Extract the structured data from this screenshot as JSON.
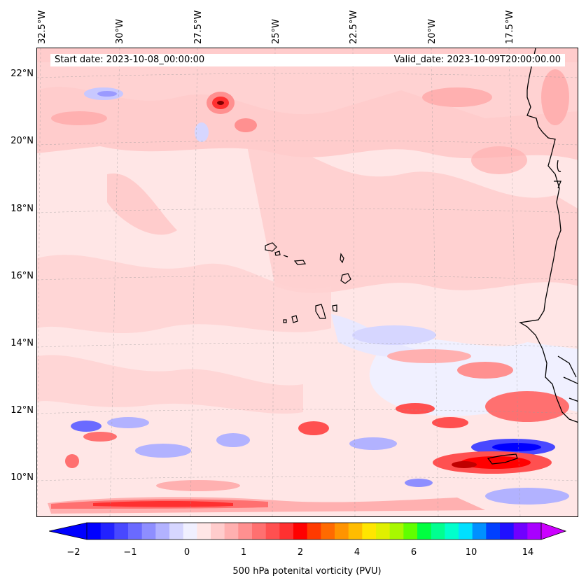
{
  "header": {
    "start_date": "Start date: 2023-10-08_00:00:00",
    "valid_date": "Valid_date: 2023-10-09T20:00:00.00"
  },
  "map": {
    "lon_labels": [
      "32.5°W",
      "30°W",
      "27.5°W",
      "25°W",
      "22.5°W",
      "20°W",
      "17.5°W"
    ],
    "lat_labels": [
      "22°N",
      "20°N",
      "18°N",
      "16°N",
      "14°N",
      "12°N",
      "10°N"
    ],
    "background_color": "#ffe6e6"
  },
  "colorbar": {
    "label": "500 hPa potenital vorticity (PVU)",
    "ticks": [
      "−2",
      "−1",
      "0",
      "1",
      "2",
      "4",
      "6",
      "10",
      "14"
    ],
    "colors": [
      "#0000ff",
      "#2222ff",
      "#4848ff",
      "#6a6aff",
      "#8e8eff",
      "#b2b2ff",
      "#d6d6ff",
      "#f0f0ff",
      "#ffe6e6",
      "#ffcccc",
      "#ffb0b0",
      "#ff9090",
      "#ff7070",
      "#ff5050",
      "#ff3030",
      "#ff0000",
      "#ff3a00",
      "#ff6a00",
      "#ff9400",
      "#ffbc00",
      "#ffe600",
      "#e0f000",
      "#a8f800",
      "#60ff00",
      "#00ff40",
      "#00ff90",
      "#00ffcc",
      "#00e0ff",
      "#0090ff",
      "#0040ff",
      "#2010ff",
      "#7000ff",
      "#a800ff"
    ],
    "extend_low_color": "#0000ff",
    "extend_high_color": "#cc00ff"
  }
}
